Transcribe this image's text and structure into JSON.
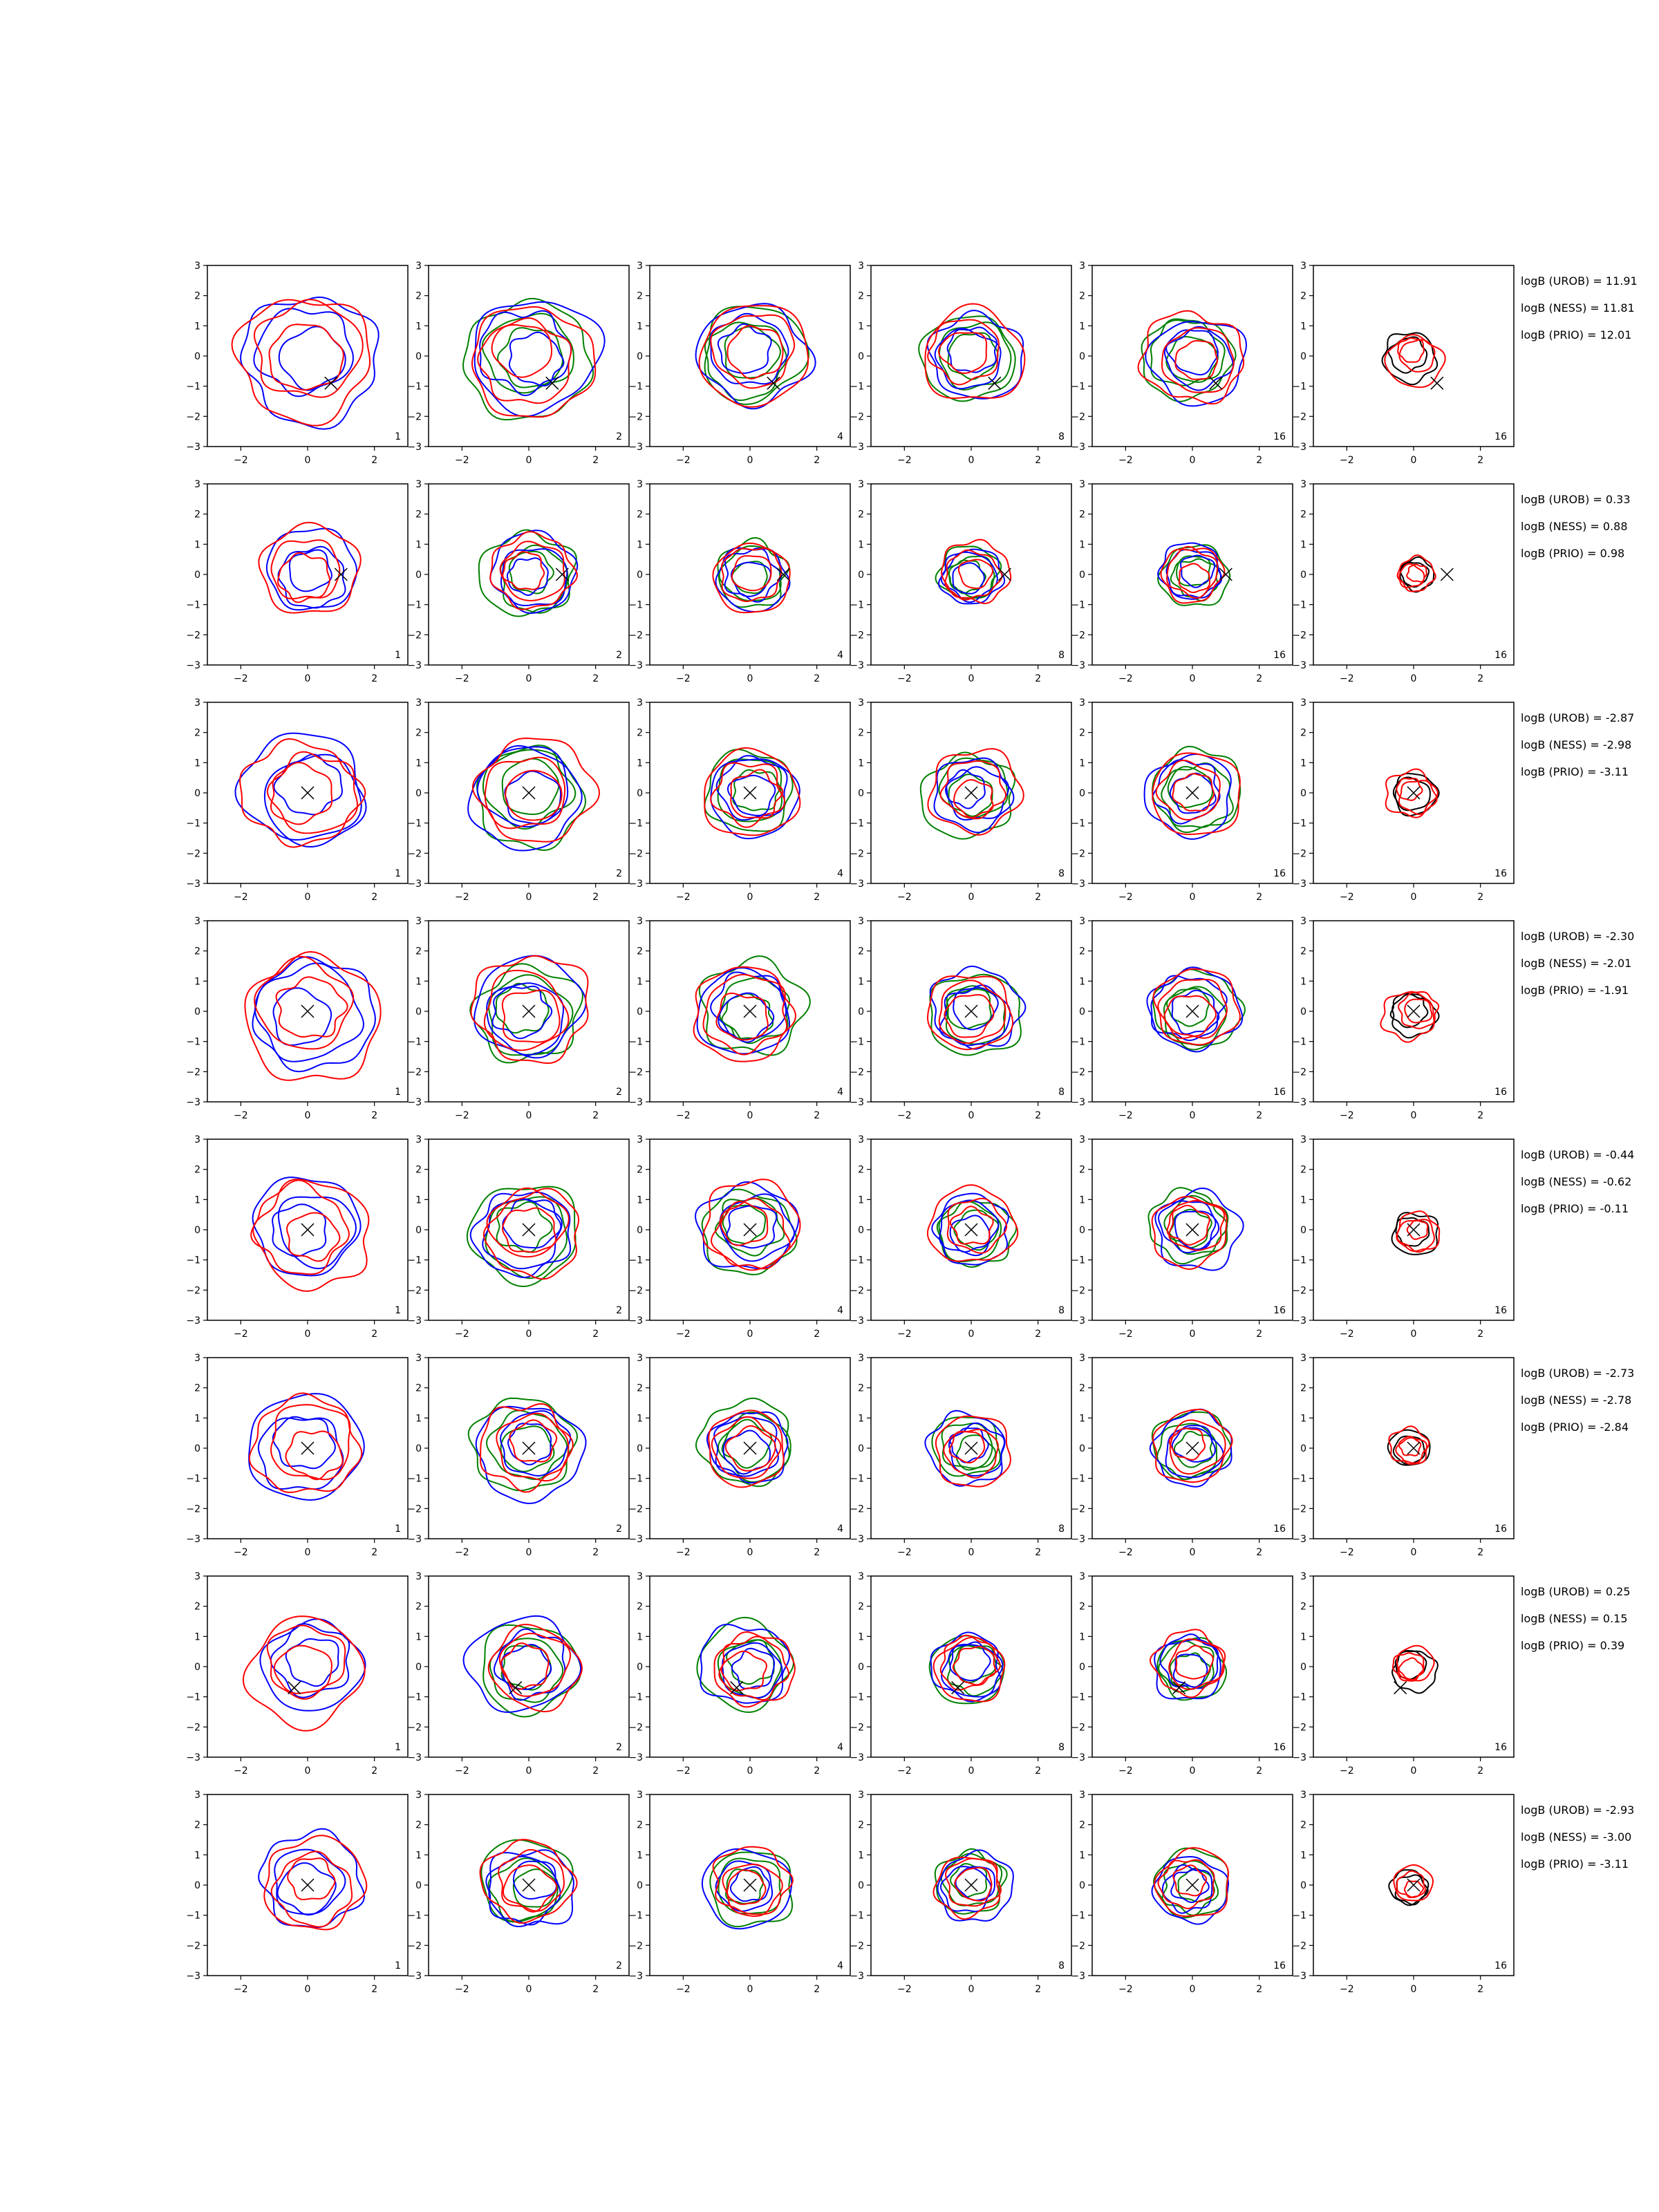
{
  "chart_data": {
    "type": "contour",
    "description_free": true,
    "grid": false,
    "xlim": [
      -3,
      3
    ],
    "ylim": [
      -3,
      3
    ],
    "x_ticks": [
      -2,
      0,
      2
    ],
    "y_ticks": [
      3,
      2,
      1,
      0,
      -1,
      -2,
      -3
    ],
    "x_tick_labels": [
      "−2",
      "0",
      "2"
    ],
    "y_tick_labels": [
      "3",
      "2",
      "1",
      "0",
      "−1",
      "−2",
      "−3"
    ],
    "colors": {
      "green": "#008000",
      "blue": "#0000ff",
      "red": "#ff0000",
      "black": "#000000"
    },
    "column_labels": [
      "1",
      "2",
      "4",
      "8",
      "16",
      "16"
    ],
    "rows": [
      {
        "marker": [
          0.7,
          -0.9
        ],
        "radius": 2.0,
        "logB": [
          "logB (UROB) = 11.91",
          "logB (NESS) = 11.81",
          "logB (PRIO) = 12.01"
        ]
      },
      {
        "marker": [
          1.0,
          0.0
        ],
        "radius": 1.4,
        "logB": [
          "logB (UROB) = 0.33",
          "logB (NESS) = 0.88",
          "logB (PRIO) = 0.98"
        ]
      },
      {
        "marker": [
          0.0,
          0.0
        ],
        "radius": 1.8,
        "logB": [
          "logB (UROB) = -2.87",
          "logB (NESS) = -2.98",
          "logB (PRIO) = -3.11"
        ]
      },
      {
        "marker": [
          0.0,
          0.0
        ],
        "radius": 1.9,
        "logB": [
          "logB (UROB) = -2.30",
          "logB (NESS) = -2.01",
          "logB (PRIO) = -1.91"
        ]
      },
      {
        "marker": [
          0.0,
          0.0
        ],
        "radius": 1.7,
        "logB": [
          "logB (UROB) = -0.44",
          "logB (NESS) = -0.62",
          "logB (PRIO) = -0.11"
        ]
      },
      {
        "marker": [
          0.0,
          0.0
        ],
        "radius": 1.6,
        "logB": [
          "logB (UROB) = -2.73",
          "logB (NESS) = -2.78",
          "logB (PRIO) = -2.84"
        ]
      },
      {
        "marker": [
          -0.4,
          -0.7
        ],
        "radius": 1.6,
        "logB": [
          "logB (UROB) = 0.25",
          "logB (NESS) = 0.15",
          "logB (PRIO) = 0.39"
        ]
      },
      {
        "marker": [
          0.0,
          0.0
        ],
        "radius": 1.5,
        "logB": [
          "logB (UROB) = -2.93",
          "logB (NESS) = -3.00",
          "logB (PRIO) = -3.11"
        ]
      }
    ]
  }
}
